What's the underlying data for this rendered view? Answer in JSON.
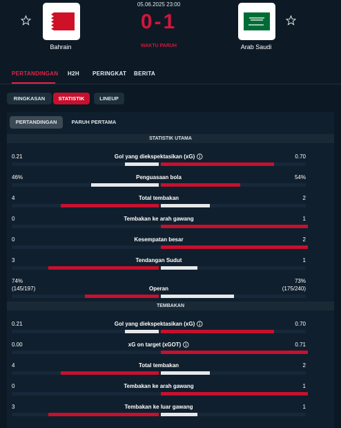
{
  "header": {
    "date": "05.06.2025 23:00",
    "score": "0-1",
    "status": "WAKTU PARUH",
    "home": "Bahrain",
    "away": "Arab Saudi"
  },
  "tabs": [
    "PERTANDINGAN",
    "H2H",
    "PERINGKAT",
    "BERITA"
  ],
  "subtabs": [
    "RINGKASAN",
    "STATISTIK",
    "LINEUP"
  ],
  "periods": [
    "PERTANDINGAN",
    "PARUH PERTAMA"
  ],
  "sections": [
    {
      "title": "STATISTIK UTAMA",
      "rows": [
        {
          "label": "Gol yang diekspektasikan (xG)",
          "info": true,
          "home": "0.21",
          "away": "0.70"
        },
        {
          "label": "Penguasaan bola",
          "home": "46%",
          "away": "54%"
        },
        {
          "label": "Total tembakan",
          "home": "4",
          "away": "2"
        },
        {
          "label": "Tembakan ke arah gawang",
          "home": "0",
          "away": "1"
        },
        {
          "label": "Kesempatan besar",
          "home": "0",
          "away": "2"
        },
        {
          "label": "Tendangan Sudut",
          "home": "3",
          "away": "1"
        },
        {
          "label": "Operan",
          "home": "74%",
          "away": "73%",
          "home_detail": "(145/197)",
          "away_detail": "(175/240)"
        }
      ]
    },
    {
      "title": "TEMBAKAN",
      "rows": [
        {
          "label": "Gol yang diekspektasikan (xG)",
          "info": true,
          "home": "0.21",
          "away": "0.70"
        },
        {
          "label": "xG on target (xGOT)",
          "info": true,
          "home": "0.00",
          "away": "0.71"
        },
        {
          "label": "Total tembakan",
          "home": "4",
          "away": "2"
        },
        {
          "label": "Tembakan ke arah gawang",
          "home": "0",
          "away": "1"
        },
        {
          "label": "Tembakan ke luar gawang",
          "home": "3",
          "away": "1"
        }
      ]
    }
  ]
}
